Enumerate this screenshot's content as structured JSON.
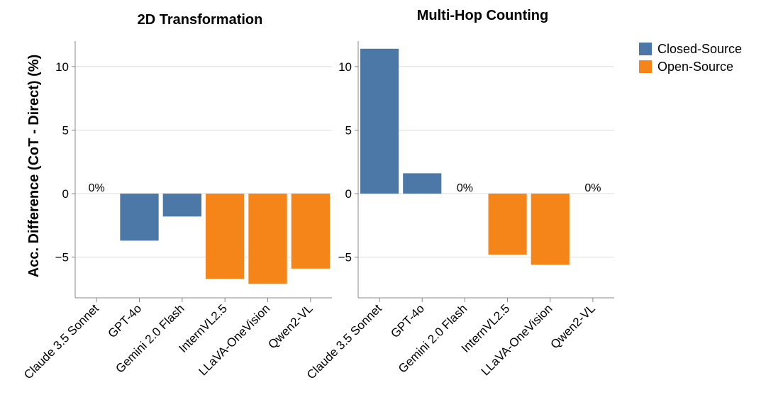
{
  "chart_data": {
    "type": "bar",
    "ylabel": "Acc. Difference (CoT - Direct) (%)",
    "ylim": [
      -8.2,
      12
    ],
    "yticks": [
      -5,
      0,
      5,
      10
    ],
    "grid": true,
    "legend_position": "top-right",
    "legend": [
      {
        "label": "Closed-Source",
        "color": "#4c78a8"
      },
      {
        "label": "Open-Source",
        "color": "#f58518"
      }
    ],
    "categories": [
      "Claude 3.5 Sonnet",
      "GPT-4o",
      "Gemini 2.0 Flash",
      "InternVL2.5",
      "LLaVA-OneVision",
      "Qwen2-VL"
    ],
    "group": [
      "Closed-Source",
      "Closed-Source",
      "Closed-Source",
      "Open-Source",
      "Open-Source",
      "Open-Source"
    ],
    "zero_label": "0%",
    "panels": [
      {
        "title": "2D Transformation",
        "values": [
          0,
          -3.7,
          -1.8,
          -6.7,
          -7.1,
          -5.9
        ]
      },
      {
        "title": "Multi-Hop Counting",
        "values": [
          11.4,
          1.6,
          0,
          -4.8,
          -5.6,
          0
        ]
      }
    ]
  }
}
